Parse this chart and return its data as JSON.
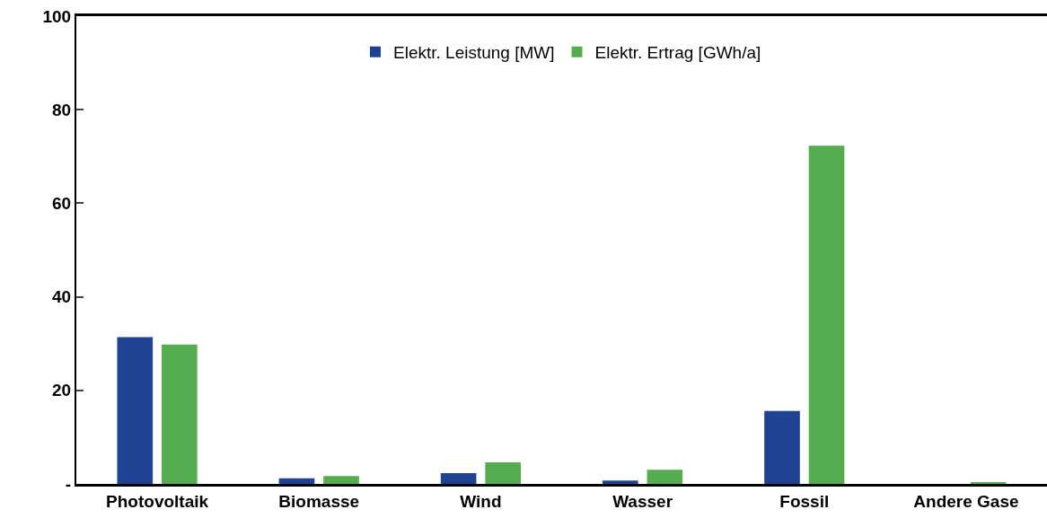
{
  "chart_data": {
    "type": "bar",
    "categories": [
      "Photovoltaik",
      "Biomasse",
      "Wind",
      "Wasser",
      "Fossil",
      "Andere Gase"
    ],
    "series": [
      {
        "name": "Elektr. Leistung [MW]",
        "color": "#1f4391",
        "values": [
          31.4,
          1.2,
          2.3,
          0.7,
          15.6,
          0
        ]
      },
      {
        "name": "Elektr. Ertrag [GWh/a]",
        "color": "#55ad4f",
        "values": [
          29.8,
          1.7,
          4.6,
          3.0,
          72.3,
          0.2
        ]
      }
    ],
    "ylim": [
      0,
      100
    ],
    "yticks": [
      {
        "value": 0,
        "label": "-"
      },
      20,
      40,
      60,
      80,
      100
    ],
    "legend": "top"
  }
}
